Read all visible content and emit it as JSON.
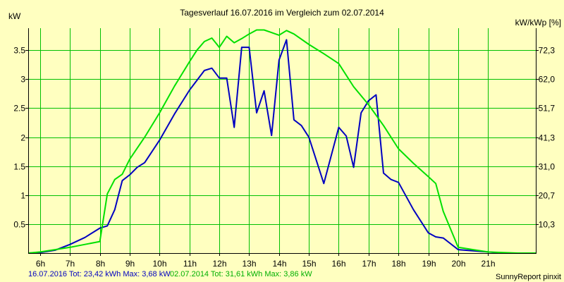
{
  "chart_data": {
    "type": "line",
    "title": "Tagesverlauf 16.07.2016 im Vergleich zum 02.07.2014",
    "ylabel_left": "kW",
    "ylabel_right": "kW/kWp [%]",
    "xlim": [
      5.6,
      22.6
    ],
    "ylim": [
      0,
      3.88
    ],
    "x_ticks": [
      6,
      7,
      8,
      9,
      10,
      11,
      12,
      13,
      14,
      15,
      16,
      17,
      18,
      19,
      20,
      21
    ],
    "x_tick_labels": [
      "6h",
      "7h",
      "8h",
      "9h",
      "10h",
      "11h",
      "12h",
      "13h",
      "14h",
      "15h",
      "16h",
      "17h",
      "18h",
      "19h",
      "20h",
      "21h"
    ],
    "y_ticks": [
      0.5,
      1,
      1.5,
      2,
      2.5,
      3,
      3.5
    ],
    "y_tick_labels": [
      "0.5",
      "1",
      "1.5",
      "2",
      "2.5",
      "3",
      "3.5"
    ],
    "y2_ticks": [
      0.5,
      1.0,
      1.5,
      2.0,
      2.5,
      3.0,
      3.5
    ],
    "y2_tick_labels": [
      "10,3",
      "20,7",
      "31,0",
      "41,3",
      "51,7",
      "62,0",
      "72,3"
    ],
    "grid": true,
    "colors": {
      "background": "#ffffc0",
      "grid": "#00c000",
      "axis": "#000000"
    },
    "series": [
      {
        "name": "16.07.2016",
        "color": "#0000c0",
        "x": [
          5.6,
          6.0,
          6.5,
          7.0,
          7.5,
          8.0,
          8.25,
          8.5,
          8.75,
          9.0,
          9.25,
          9.5,
          10.0,
          10.5,
          11.0,
          11.5,
          11.75,
          12.0,
          12.25,
          12.5,
          12.75,
          13.0,
          13.25,
          13.5,
          13.75,
          14.0,
          14.25,
          14.5,
          14.75,
          15.0,
          15.5,
          16.0,
          16.25,
          16.5,
          16.75,
          17.0,
          17.25,
          17.5,
          17.75,
          18.0,
          18.5,
          19.0,
          19.25,
          19.5,
          20.0,
          20.5,
          21.0,
          21.5,
          22.0,
          22.6
        ],
        "y": [
          0.0,
          0.01,
          0.05,
          0.15,
          0.27,
          0.43,
          0.47,
          0.75,
          1.25,
          1.35,
          1.48,
          1.56,
          1.95,
          2.4,
          2.81,
          3.15,
          3.19,
          3.02,
          3.02,
          2.17,
          3.55,
          3.55,
          2.42,
          2.8,
          2.03,
          3.33,
          3.68,
          2.3,
          2.2,
          2.0,
          1.2,
          2.17,
          2.02,
          1.48,
          2.42,
          2.63,
          2.73,
          1.38,
          1.27,
          1.22,
          0.75,
          0.35,
          0.28,
          0.26,
          0.06,
          0.04,
          0.02,
          0.0,
          0.0,
          0.0
        ]
      },
      {
        "name": "02.07.2014",
        "color": "#00e000",
        "x": [
          5.6,
          6.0,
          6.5,
          7.0,
          7.5,
          8.0,
          8.25,
          8.5,
          8.75,
          9.0,
          9.5,
          10.0,
          10.5,
          11.0,
          11.25,
          11.5,
          11.75,
          12.0,
          12.25,
          12.5,
          12.75,
          13.0,
          13.25,
          13.5,
          14.0,
          14.25,
          14.5,
          15.0,
          15.5,
          16.0,
          16.5,
          17.0,
          17.5,
          18.0,
          18.5,
          19.0,
          19.25,
          19.5,
          20.0,
          20.5,
          21.0,
          21.5,
          22.0,
          22.6
        ],
        "y": [
          0.0,
          0.02,
          0.06,
          0.1,
          0.15,
          0.2,
          1.02,
          1.27,
          1.36,
          1.62,
          2.0,
          2.42,
          2.88,
          3.3,
          3.5,
          3.65,
          3.71,
          3.55,
          3.74,
          3.63,
          3.7,
          3.78,
          3.85,
          3.85,
          3.76,
          3.84,
          3.78,
          3.6,
          3.44,
          3.27,
          2.87,
          2.56,
          2.2,
          1.8,
          1.55,
          1.32,
          1.2,
          0.72,
          0.1,
          0.06,
          0.02,
          0.01,
          0.0,
          0.0
        ]
      }
    ]
  },
  "footer": {
    "series1_label": "16.07.2016 Tot: 23,42 kWh Max: 3,68 kW",
    "series2_label": "02.07.2014 Tot: 31,61 kWh Max: 3,86 kW",
    "credit": "SunnyReport pinxit"
  }
}
